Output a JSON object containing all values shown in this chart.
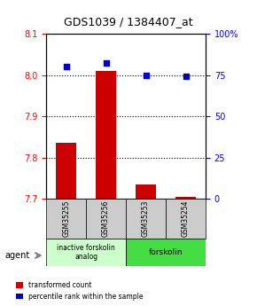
{
  "title": "GDS1039 / 1384407_at",
  "samples": [
    "GSM35255",
    "GSM35256",
    "GSM35253",
    "GSM35254"
  ],
  "bar_values": [
    7.835,
    8.01,
    7.735,
    7.705
  ],
  "bar_base": 7.7,
  "dot_values": [
    80,
    82,
    75,
    74
  ],
  "ylim_left": [
    7.7,
    8.1
  ],
  "ylim_right": [
    0,
    100
  ],
  "yticks_left": [
    7.7,
    7.8,
    7.9,
    8.0,
    8.1
  ],
  "yticks_right": [
    0,
    25,
    50,
    75,
    100
  ],
  "ytick_labels_right": [
    "0",
    "25",
    "50",
    "75",
    "100%"
  ],
  "hlines": [
    7.8,
    7.9,
    8.0
  ],
  "bar_color": "#cc0000",
  "dot_color": "#0000cc",
  "group1_label": "inactive forskolin\nanalog",
  "group2_label": "forskolin",
  "group1_color": "#ccffcc",
  "group2_color": "#44dd44",
  "group1_samples": [
    0,
    1
  ],
  "group2_samples": [
    2,
    3
  ],
  "legend_bar_label": "transformed count",
  "legend_dot_label": "percentile rank within the sample",
  "agent_label": "agent",
  "background_color": "#ffffff",
  "plot_bg_color": "#ffffff",
  "sample_box_color": "#cccccc"
}
